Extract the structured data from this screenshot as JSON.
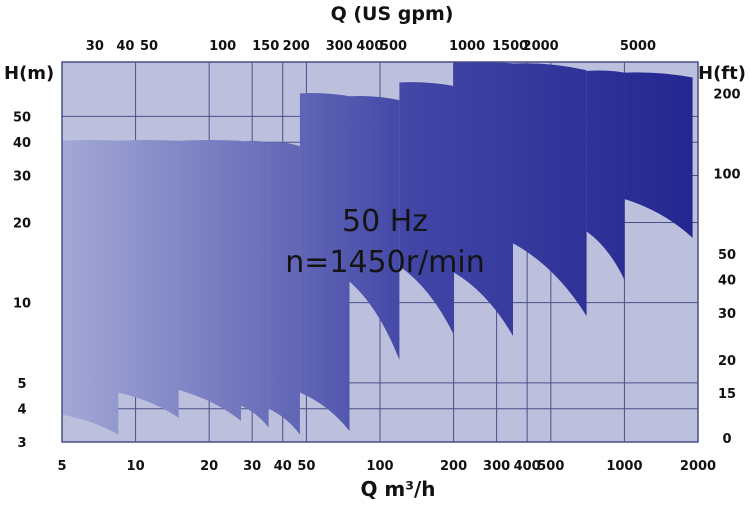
{
  "chart_data": {
    "type": "area",
    "title": "",
    "overlay_text": [
      "50 Hz",
      "n=1450r/min"
    ],
    "x_bottom": {
      "label": "Q m³/h",
      "scale": "log",
      "range": [
        5,
        2000
      ],
      "ticks": [
        5,
        10,
        20,
        30,
        40,
        50,
        100,
        200,
        300,
        400,
        500,
        1000,
        2000
      ],
      "tick_labels": [
        "5",
        "10",
        "20",
        "30",
        "40",
        "50",
        "100",
        "200",
        "300",
        "400",
        "500",
        "1000",
        "2000"
      ]
    },
    "x_top": {
      "label": "Q (US gpm)",
      "scale": "log",
      "ticks": [
        30,
        40,
        50,
        100,
        150,
        200,
        300,
        400,
        500,
        1000,
        1500,
        2000,
        5000
      ],
      "tick_labels": [
        "30",
        "40",
        "50",
        "100",
        "150",
        "200",
        "300",
        "400",
        "500",
        "1000",
        "1500",
        "2000",
        "5000"
      ]
    },
    "y_left": {
      "label": "H(m)",
      "scale": "log",
      "range": [
        3,
        80
      ],
      "ticks": [
        3,
        4,
        5,
        10,
        20,
        30,
        40,
        50
      ],
      "tick_labels": [
        "3",
        "4",
        "5",
        "10",
        "20",
        "30",
        "40",
        "50"
      ]
    },
    "y_right": {
      "label": "H(ft)",
      "ticks": [
        0,
        15,
        20,
        30,
        40,
        50,
        100,
        200
      ],
      "tick_labels": [
        "0",
        "15",
        "20",
        "30",
        "40",
        "50",
        "100",
        "200"
      ]
    },
    "grid": true,
    "colors": {
      "background": "#bcc0dd",
      "grid": "#4a4f88",
      "fill_light": "#a3a8d6",
      "fill_dark": "#23268f"
    },
    "series": [
      {
        "region": [
          [
            5,
            40.5
          ],
          [
            8.5,
            40.5
          ],
          [
            8.5,
            3.2
          ],
          [
            5,
            3.8
          ]
        ]
      },
      {
        "region": [
          [
            8.5,
            40.5
          ],
          [
            15,
            40.5
          ],
          [
            15,
            3.7
          ],
          [
            8.5,
            4.6
          ]
        ]
      },
      {
        "region": [
          [
            15,
            40.5
          ],
          [
            27,
            40.5
          ],
          [
            27,
            3.6
          ],
          [
            15,
            4.7
          ]
        ]
      },
      {
        "region": [
          [
            27,
            40.3
          ],
          [
            35,
            39.9
          ],
          [
            35,
            3.4
          ],
          [
            27,
            4.1
          ]
        ]
      },
      {
        "region": [
          [
            35,
            39.9
          ],
          [
            47,
            38.6
          ],
          [
            47,
            3.2
          ],
          [
            35,
            4.0
          ]
        ]
      },
      {
        "region": [
          [
            47,
            61.0
          ],
          [
            75,
            59.5
          ],
          [
            75,
            3.3
          ],
          [
            47,
            4.6
          ]
        ]
      },
      {
        "region": [
          [
            75,
            59.5
          ],
          [
            120,
            57.5
          ],
          [
            120,
            6.1
          ],
          [
            75,
            12.0
          ]
        ]
      },
      {
        "region": [
          [
            120,
            67.0
          ],
          [
            200,
            65.0
          ],
          [
            200,
            7.6
          ],
          [
            120,
            13.7
          ]
        ]
      },
      {
        "region": [
          [
            200,
            80.0
          ],
          [
            350,
            79.0
          ],
          [
            350,
            7.5
          ],
          [
            200,
            13.0
          ]
        ]
      },
      {
        "region": [
          [
            350,
            79.0
          ],
          [
            700,
            74.5
          ],
          [
            700,
            8.9
          ],
          [
            350,
            16.7
          ]
        ]
      },
      {
        "region": [
          [
            700,
            74.0
          ],
          [
            1000,
            73.0
          ],
          [
            1000,
            12.2
          ],
          [
            700,
            18.5
          ]
        ]
      },
      {
        "region": [
          [
            1000,
            73.0
          ],
          [
            1900,
            70.0
          ],
          [
            1900,
            17.5
          ],
          [
            1000,
            24.5
          ]
        ]
      }
    ]
  }
}
